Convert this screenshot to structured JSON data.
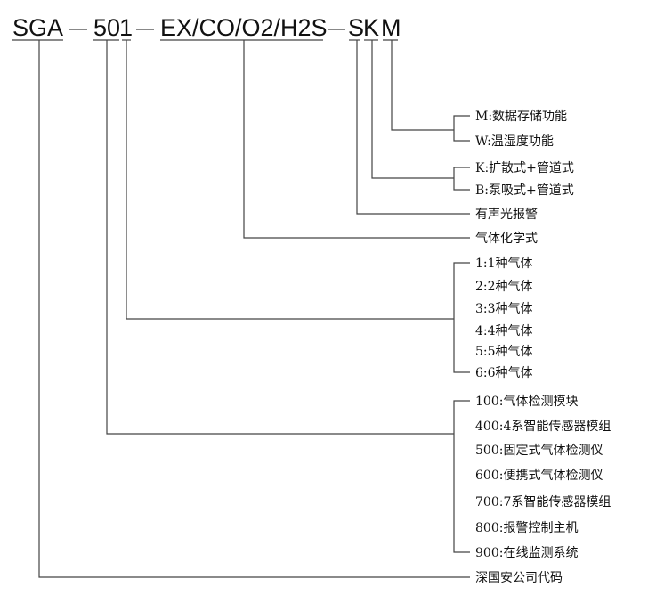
{
  "model_code": {
    "prefix": "SGA",
    "sep1": "—",
    "series_a": "50",
    "series_b": "1",
    "sep2": "—",
    "gases": "EX/CO/O2/H2S",
    "sep3": "—",
    "s": "S",
    "k": "K",
    "m": "M"
  },
  "function_options": [
    "M:数据存储功能",
    "W:温湿度功能"
  ],
  "sampling_options": [
    "K:扩散式+管道式",
    "B:泵吸式+管道式"
  ],
  "alarm_label": "有声光报警",
  "gas_formula_label": "气体化学式",
  "gas_count_options": [
    "1:1种气体",
    "2:2种气体",
    "3:3种气体",
    "4:4种气体",
    "5:5种气体",
    "6:6种气体"
  ],
  "product_options": [
    "100:气体检测模块",
    "400:4系智能传感器模组",
    "500:固定式气体检测仪",
    "600:便携式气体检测仪",
    "700:7系智能传感器模组",
    "800:报警控制主机",
    "900:在线监测系统"
  ],
  "company_label": "深国安公司代码"
}
